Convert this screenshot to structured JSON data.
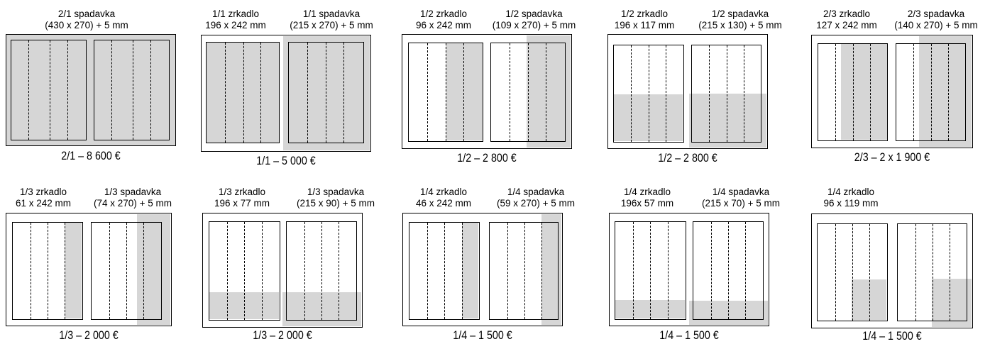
{
  "ads": [
    {
      "id": "2-1-spadavka",
      "lines_left": [
        "2/1 spadavka",
        "(430 x 270) + 5 mm"
      ],
      "lines_right": [],
      "price": "2/1 – 8 600 €"
    },
    {
      "id": "1-1",
      "lines_left": [
        "1/1 zrkadlo",
        "196 x 242 mm"
      ],
      "lines_right": [
        "1/1 spadavka",
        "(215 x 270) + 5 mm"
      ],
      "price": "1/1 – 5 000 €"
    },
    {
      "id": "1-2",
      "lines_left": [
        "1/2 zrkadlo",
        "96 x 242 mm"
      ],
      "lines_right": [
        "1/2 spadavka",
        "(109 x 270) + 5 mm"
      ],
      "price": "1/2 – 2 800 €"
    },
    {
      "id": "1-2-horizontal",
      "lines_left": [
        "1/2 zrkadlo",
        "196 x 117 mm"
      ],
      "lines_right": [
        "1/2 spadavka",
        "(215 x 130) + 5 mm"
      ],
      "price": "1/2 – 2 800 €"
    },
    {
      "id": "2-3",
      "lines_left": [
        "2/3 zrkadlo",
        "127 x 242 mm"
      ],
      "lines_right": [
        "2/3 spadavka",
        "(140 x 270) + 5 mm"
      ],
      "price": "2/3 – 2 x 1 900 €"
    },
    {
      "id": "1-3",
      "lines_left": [
        "1/3 zrkadlo",
        "61 x 242 mm"
      ],
      "lines_right": [
        "1/3 spadavka",
        "(74 x 270) + 5 mm"
      ],
      "price": "1/3 – 2 000 €"
    },
    {
      "id": "1-3-horizontal",
      "lines_left": [
        "1/3 zrkadlo",
        "196 x 77 mm"
      ],
      "lines_right": [
        "1/3 spadavka",
        "(215 x 90) + 5 mm"
      ],
      "price": "1/3 – 2 000 €"
    },
    {
      "id": "1-4",
      "lines_left": [
        "1/4 zrkadlo",
        "46 x 242 mm"
      ],
      "lines_right": [
        "1/4 spadavka",
        "(59 x 270) + 5 mm"
      ],
      "price": "1/4 – 1 500 €"
    },
    {
      "id": "1-4-horizontal",
      "lines_left": [
        "1/4 zrkadlo",
        "196x 57 mm"
      ],
      "lines_right": [
        "1/4 spadavka",
        "(215 x 70) + 5 mm"
      ],
      "price": "1/4 – 1 500 €"
    },
    {
      "id": "1-4-box",
      "lines_left": [
        "1/4 zrkadlo",
        "96 x 119 mm"
      ],
      "lines_right": [],
      "price": "1/4 – 1 500 €"
    }
  ]
}
